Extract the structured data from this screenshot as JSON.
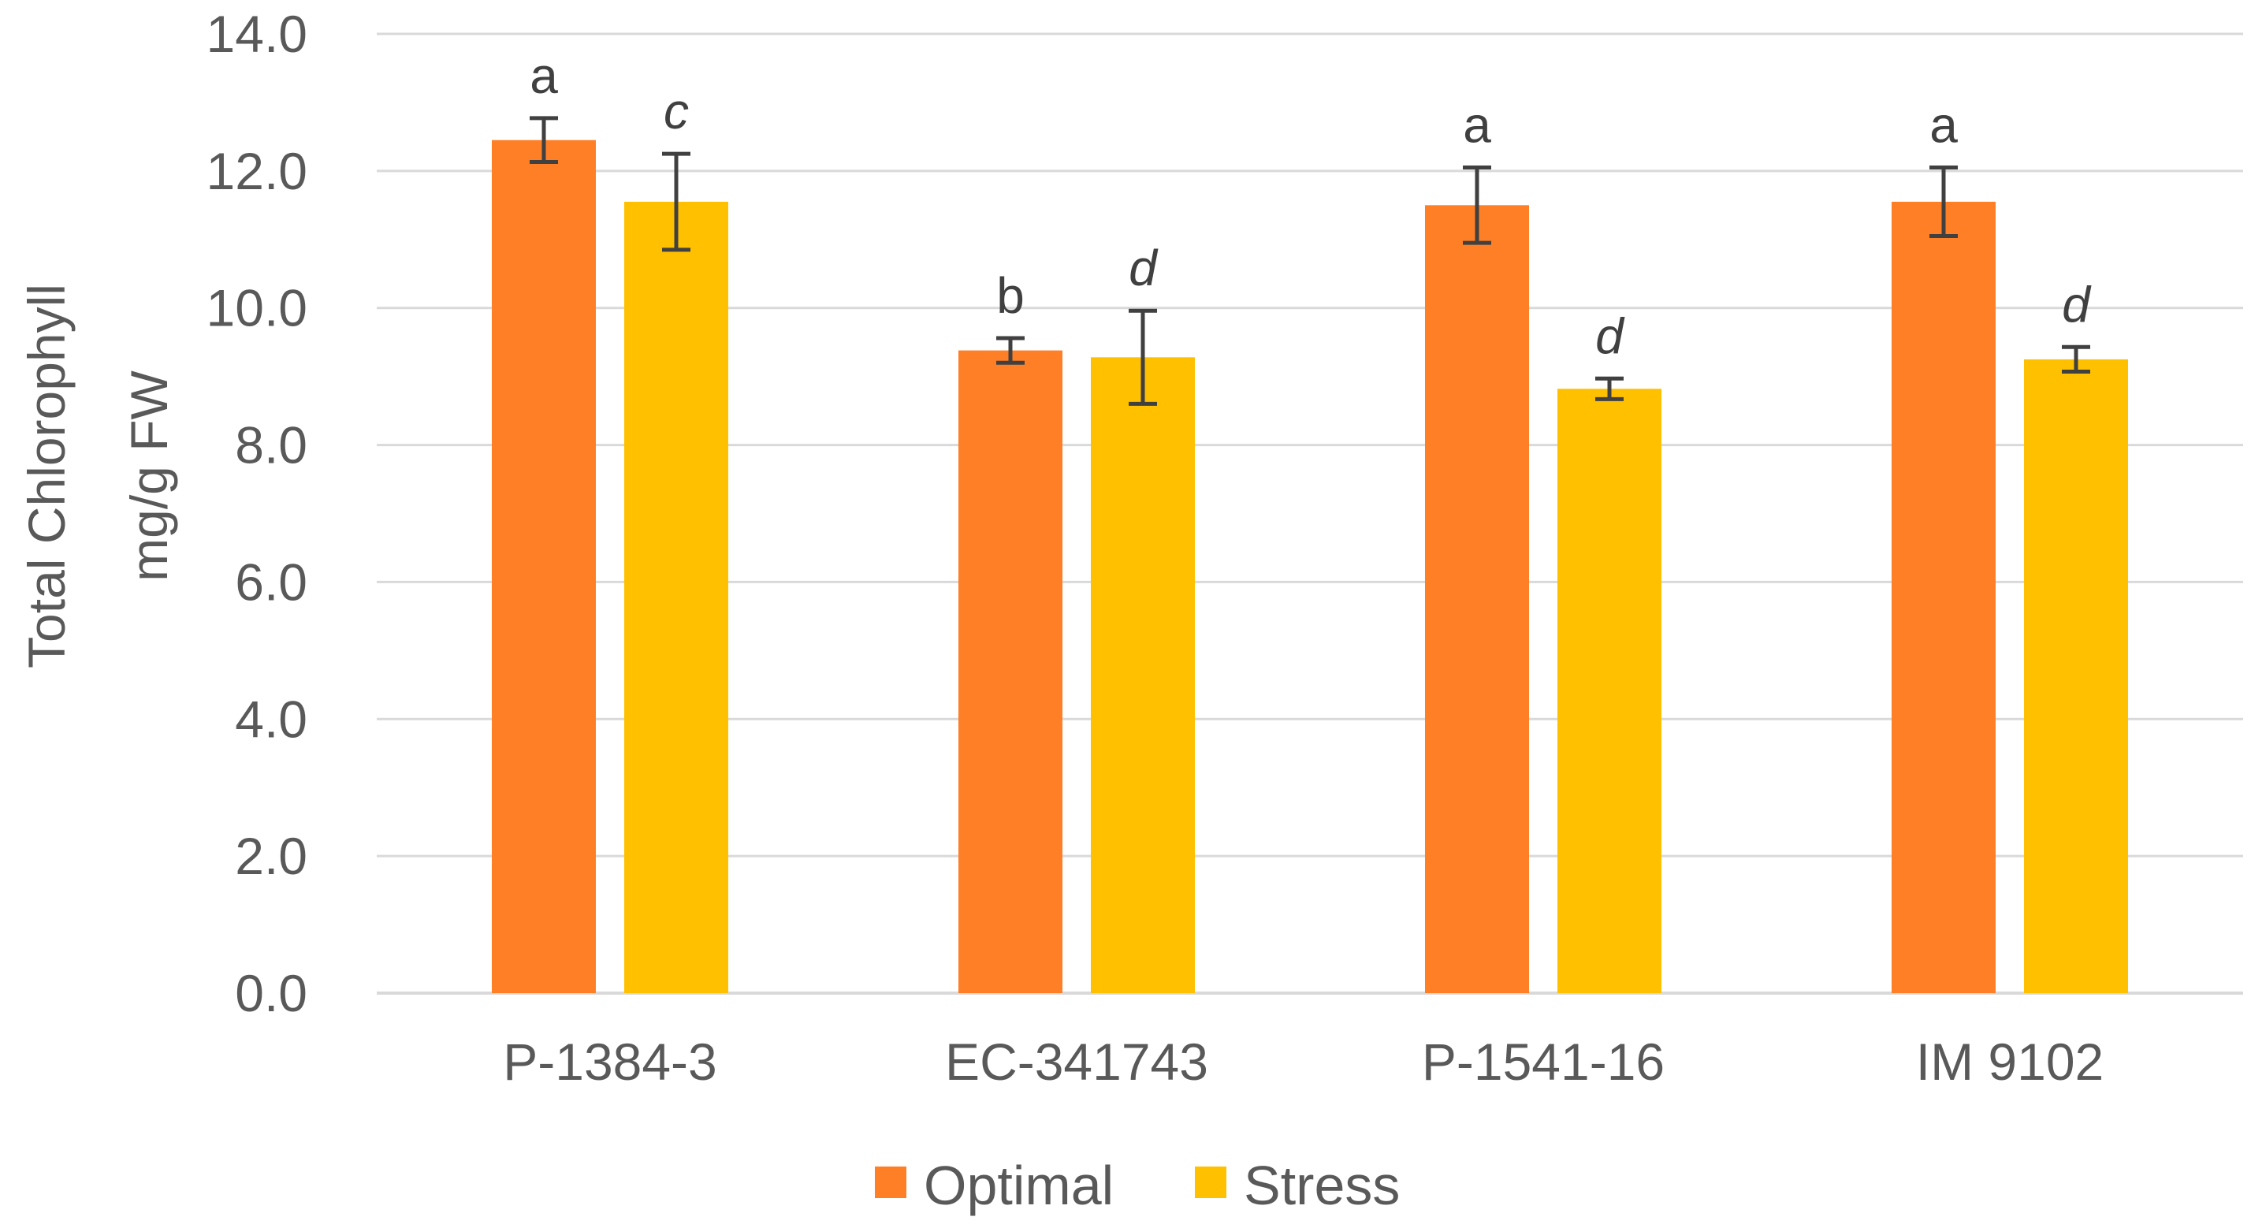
{
  "chart_data": {
    "type": "bar",
    "title": "",
    "xlabel": "",
    "ylabel_lines": [
      "Total Chlorophyll",
      "mg/g FW"
    ],
    "categories": [
      "P-1384-3",
      "EC-341743",
      "P-1541-16",
      "IM 9102"
    ],
    "ylim": [
      0,
      14
    ],
    "yticks": [
      0,
      2,
      4,
      6,
      8,
      10,
      12,
      14
    ],
    "ytick_labels": [
      "0.0",
      "2.0",
      "4.0",
      "6.0",
      "8.0",
      "10.0",
      "12.0",
      "14.0"
    ],
    "grid": true,
    "legend_position": "bottom-center",
    "series": [
      {
        "name": "Optimal",
        "color": "#FF7F27",
        "values": [
          12.45,
          9.38,
          11.5,
          11.55
        ],
        "errors": [
          0.32,
          0.18,
          0.55,
          0.5
        ],
        "labels": [
          "a",
          "b",
          "a",
          "a"
        ],
        "label_style": "normal"
      },
      {
        "name": "Stress",
        "color": "#FFC000",
        "values": [
          11.55,
          9.28,
          8.82,
          9.25
        ],
        "errors": [
          0.7,
          0.68,
          0.15,
          0.18
        ],
        "labels": [
          "c",
          "d",
          "d",
          "d"
        ],
        "label_style": "italic"
      }
    ]
  },
  "colors": {
    "axis_text": "#595959",
    "gridline": "#D9D9D9",
    "error_bar": "#404040"
  }
}
